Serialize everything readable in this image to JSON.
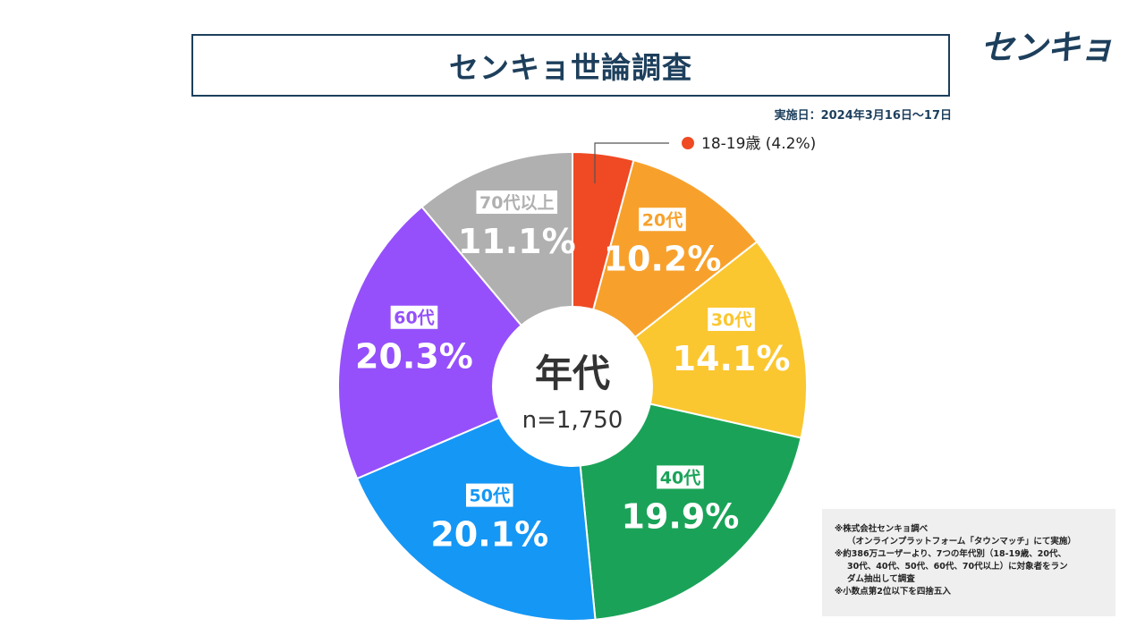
{
  "title": "センキョ世論調査",
  "logo_text": "センキョ",
  "survey_date": "実施日：2024年3月16日～17日",
  "center": {
    "title": "年代",
    "sample": "n=1,750"
  },
  "chart_data": {
    "type": "pie",
    "title": "年代",
    "sample_size": 1750,
    "unit": "%",
    "slices": [
      {
        "name": "18-19歳",
        "value": 4.2,
        "percent_label": "4.2%",
        "color": "#ef4a23"
      },
      {
        "name": "20代",
        "value": 10.2,
        "percent_label": "10.2%",
        "color": "#f7a12c"
      },
      {
        "name": "30代",
        "value": 14.1,
        "percent_label": "14.1%",
        "color": "#fbc730"
      },
      {
        "name": "40代",
        "value": 19.9,
        "percent_label": "19.9%",
        "color": "#1aa358"
      },
      {
        "name": "50代",
        "value": 20.1,
        "percent_label": "20.1%",
        "color": "#1597f5"
      },
      {
        "name": "60代",
        "value": 20.3,
        "percent_label": "20.3%",
        "color": "#9550fb"
      },
      {
        "name": "70代以上",
        "value": 11.1,
        "percent_label": "11.1%",
        "color": "#b0b0b0"
      }
    ],
    "callout_label": "18-19歳 (4.2%)"
  },
  "notes": [
    "※株式会社センキョ調べ",
    "（オンラインプラットフォーム「タウンマッチ」にて実施）",
    "※約386万ユーザーより、7つの年代別（18-19歳、20代、",
    "30代、40代、50代、60代、70代以上）に対象者をラン",
    "ダム抽出して調査",
    "※小数点第2位以下を四捨五入"
  ]
}
